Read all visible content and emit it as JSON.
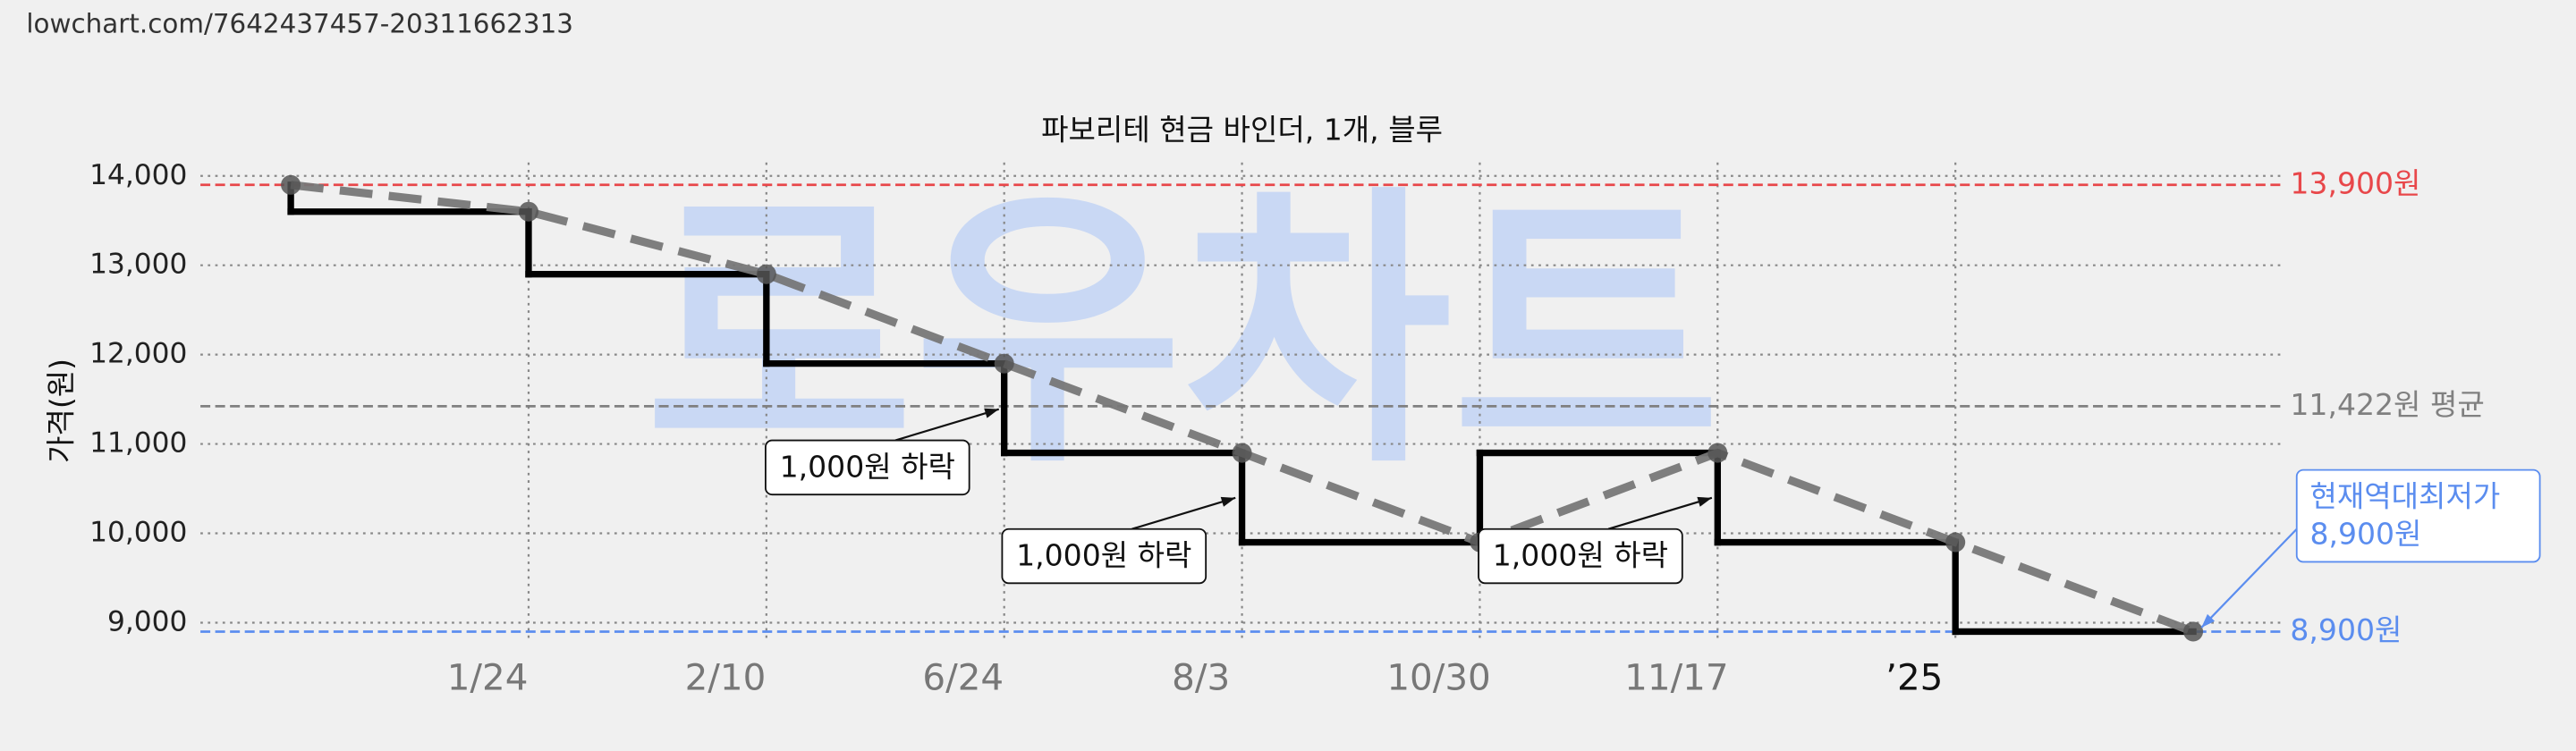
{
  "source_url": "lowchart.com/7642437457-20311662313",
  "chart_data": {
    "type": "line",
    "step": true,
    "trend_line": true,
    "title": "파보리테 현금 바인더, 1개, 블루",
    "watermark": "로우차트",
    "y_label": "가격(원)",
    "categories": [
      null,
      "1/24",
      "2/10",
      "6/24",
      "8/3",
      "10/30",
      "11/17",
      "’25",
      null
    ],
    "values": [
      13900,
      13600,
      12900,
      11900,
      10900,
      9900,
      10900,
      9900,
      8900
    ],
    "color": "#000000",
    "trend_color": "#777777",
    "ylim": [
      8800,
      14150
    ],
    "yticks": [
      {
        "value": 9000,
        "label": "9,000"
      },
      {
        "value": 10000,
        "label": "10,000"
      },
      {
        "value": 11000,
        "label": "11,000"
      },
      {
        "value": 12000,
        "label": "12,000"
      },
      {
        "value": 13000,
        "label": "13,000"
      },
      {
        "value": 14000,
        "label": "14,000"
      }
    ],
    "grid": true,
    "reference_lines": [
      {
        "value": 13900,
        "label": "13,900원",
        "color": "#e8474a"
      },
      {
        "value": 11422,
        "label": "11,422원 평균",
        "color": "#808080"
      },
      {
        "value": 8900,
        "label": "8,900원",
        "color": "#5b8def"
      }
    ],
    "annotations": [
      {
        "lines": [
          "1,000원 하락"
        ]
      },
      {
        "lines": [
          "1,000원 하락"
        ]
      },
      {
        "lines": [
          "1,000원 하락"
        ]
      },
      {
        "lines": [
          "현재역대최저가",
          "8,900원"
        ]
      }
    ]
  }
}
